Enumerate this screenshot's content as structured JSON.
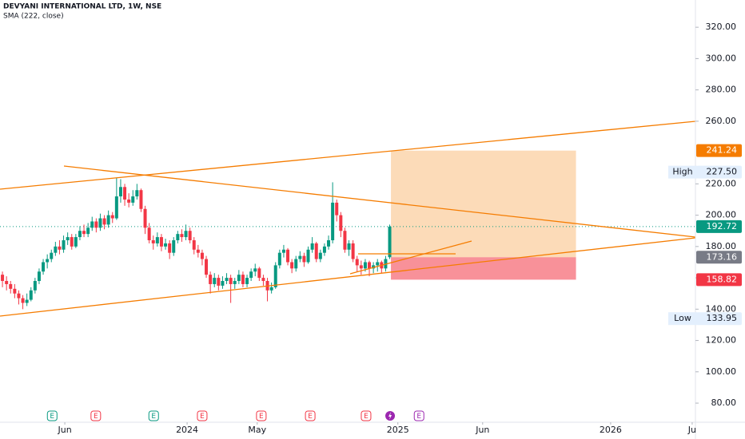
{
  "chart_data": {
    "type": "candlestick",
    "title": "DEVYANI INTERNATIONAL LTD, 1W, NSE",
    "subtitle": "SMA (222, close)",
    "up_color": "#089981",
    "down_color": "#f23645",
    "xlim": [
      -0.6,
      170
    ],
    "xticks": [
      {
        "value": 15.3,
        "label": "Jun"
      },
      {
        "value": 45.3,
        "label": "2024"
      },
      {
        "value": 62.5,
        "label": "May"
      },
      {
        "value": 97,
        "label": "2025"
      },
      {
        "value": 117.8,
        "label": "Jun"
      },
      {
        "value": 149.2,
        "label": "2026"
      },
      {
        "value": 169.2,
        "label": "Ju"
      }
    ],
    "ylim": [
      67.8,
      337.4
    ],
    "yticks": [
      {
        "value": 80,
        "label": "80.00"
      },
      {
        "value": 100,
        "label": "100.00"
      },
      {
        "value": 120,
        "label": "120.00"
      },
      {
        "value": 140,
        "label": "140.00"
      },
      {
        "value": 160,
        "label": "160.00"
      },
      {
        "value": 180,
        "label": "180.00"
      },
      {
        "value": 200,
        "label": "200.00"
      },
      {
        "value": 220,
        "label": "220.00"
      },
      {
        "value": 260,
        "label": "260.00"
      },
      {
        "value": 280,
        "label": "280.00"
      },
      {
        "value": 300,
        "label": "300.00"
      },
      {
        "value": 320,
        "label": "320.00"
      }
    ],
    "candles": [
      [
        162,
        164,
        154,
        158
      ],
      [
        158,
        161,
        152,
        156
      ],
      [
        156,
        158,
        150,
        153
      ],
      [
        153,
        156,
        147,
        150
      ],
      [
        150,
        152,
        143,
        147
      ],
      [
        147,
        149,
        140,
        144
      ],
      [
        144,
        150,
        142,
        146
      ],
      [
        146,
        154,
        145,
        152
      ],
      [
        152,
        160,
        150,
        158
      ],
      [
        158,
        166,
        156,
        164
      ],
      [
        164,
        172,
        162,
        170
      ],
      [
        170,
        175,
        166,
        172
      ],
      [
        172,
        178,
        170,
        176
      ],
      [
        176,
        183,
        174,
        180
      ],
      [
        180,
        184,
        175,
        178
      ],
      [
        178,
        187,
        176,
        184
      ],
      [
        184,
        189,
        181,
        186
      ],
      [
        186,
        188,
        178,
        180
      ],
      [
        180,
        188,
        179,
        186
      ],
      [
        186,
        193,
        184,
        190
      ],
      [
        190,
        194,
        186,
        188
      ],
      [
        188,
        195,
        186,
        192
      ],
      [
        192,
        199,
        190,
        196
      ],
      [
        196,
        198,
        189,
        192
      ],
      [
        192,
        201,
        190,
        198
      ],
      [
        198,
        200,
        191,
        194
      ],
      [
        194,
        203,
        192,
        200
      ],
      [
        200,
        202,
        195,
        198
      ],
      [
        198,
        224,
        197,
        212
      ],
      [
        212,
        223,
        208,
        218
      ],
      [
        218,
        220,
        206,
        210
      ],
      [
        210,
        214,
        205,
        208
      ],
      [
        208,
        216,
        206,
        212
      ],
      [
        212,
        220,
        210,
        216
      ],
      [
        216,
        217,
        202,
        204
      ],
      [
        204,
        206,
        188,
        192
      ],
      [
        192,
        195,
        182,
        184
      ],
      [
        184,
        187,
        178,
        182
      ],
      [
        182,
        189,
        180,
        186
      ],
      [
        186,
        188,
        177,
        180
      ],
      [
        180,
        185,
        178,
        182
      ],
      [
        182,
        184,
        172,
        176
      ],
      [
        176,
        186,
        174,
        184
      ],
      [
        184,
        190,
        182,
        188
      ],
      [
        188,
        191,
        183,
        186
      ],
      [
        186,
        194,
        184,
        190
      ],
      [
        190,
        192,
        182,
        184
      ],
      [
        184,
        186,
        175,
        178
      ],
      [
        178,
        181,
        173,
        176
      ],
      [
        176,
        178,
        168,
        172
      ],
      [
        172,
        174,
        160,
        162
      ],
      [
        162,
        164,
        150,
        156
      ],
      [
        156,
        163,
        154,
        160
      ],
      [
        160,
        162,
        152,
        155
      ],
      [
        155,
        161,
        153,
        158
      ],
      [
        158,
        163,
        156,
        160
      ],
      [
        160,
        162,
        144,
        156
      ],
      [
        156,
        160,
        153,
        158
      ],
      [
        158,
        165,
        156,
        162
      ],
      [
        162,
        164,
        154,
        156
      ],
      [
        156,
        162,
        154,
        160
      ],
      [
        160,
        166,
        158,
        164
      ],
      [
        164,
        169,
        161,
        166
      ],
      [
        166,
        167,
        158,
        160
      ],
      [
        160,
        162,
        155,
        158
      ],
      [
        158,
        160,
        145,
        152
      ],
      [
        152,
        157,
        150,
        154
      ],
      [
        154,
        170,
        153,
        168
      ],
      [
        168,
        178,
        166,
        176
      ],
      [
        176,
        181,
        173,
        178
      ],
      [
        178,
        179,
        168,
        170
      ],
      [
        170,
        172,
        163,
        166
      ],
      [
        166,
        174,
        164,
        172
      ],
      [
        172,
        177,
        170,
        174
      ],
      [
        174,
        176,
        167,
        170
      ],
      [
        170,
        180,
        169,
        178
      ],
      [
        178,
        186,
        176,
        182
      ],
      [
        182,
        183,
        170,
        172
      ],
      [
        172,
        178,
        170,
        176
      ],
      [
        176,
        182,
        174,
        180
      ],
      [
        180,
        187,
        178,
        184
      ],
      [
        184,
        221,
        182,
        208
      ],
      [
        208,
        210,
        196,
        200
      ],
      [
        200,
        202,
        186,
        190
      ],
      [
        190,
        192,
        176,
        178
      ],
      [
        178,
        184,
        174,
        182
      ],
      [
        182,
        184,
        170,
        172
      ],
      [
        172,
        174,
        164,
        168
      ],
      [
        168,
        171,
        162,
        166
      ],
      [
        166,
        172,
        164,
        170
      ],
      [
        170,
        171,
        161,
        166
      ],
      [
        166,
        170,
        163,
        168
      ],
      [
        168,
        172,
        164,
        170
      ],
      [
        170,
        171,
        163,
        166
      ],
      [
        166,
        174,
        164,
        172
      ],
      [
        173.16,
        194,
        172,
        192.72
      ]
    ],
    "last_price": 192.72,
    "position": {
      "start": 95.3,
      "end": 140.7,
      "target": 241.24,
      "entry": 173.16,
      "stop": 158.82
    },
    "high": {
      "label": "High",
      "value": {
        "value": 227.5,
        "label": "227.50"
      }
    },
    "low": {
      "label": "Low",
      "value": 133.95
    },
    "events": [
      {
        "x": 12.2,
        "label": "E",
        "color": "#089981"
      },
      {
        "x": 22.9,
        "label": "E",
        "color": "#f23645"
      },
      {
        "x": 37.1,
        "label": "E",
        "color": "#089981"
      },
      {
        "x": 49,
        "label": "E",
        "color": "#f23645"
      },
      {
        "x": 63.5,
        "label": "E",
        "color": "#f23645"
      },
      {
        "x": 75.5,
        "label": "E",
        "color": "#f23645"
      },
      {
        "x": 89.2,
        "label": "E",
        "color": "#f23645"
      },
      {
        "x": 95.1,
        "color": "#9c27b0"
      },
      {
        "x": 102.2,
        "label": "E",
        "color": "#9c27b0"
      }
    ]
  }
}
